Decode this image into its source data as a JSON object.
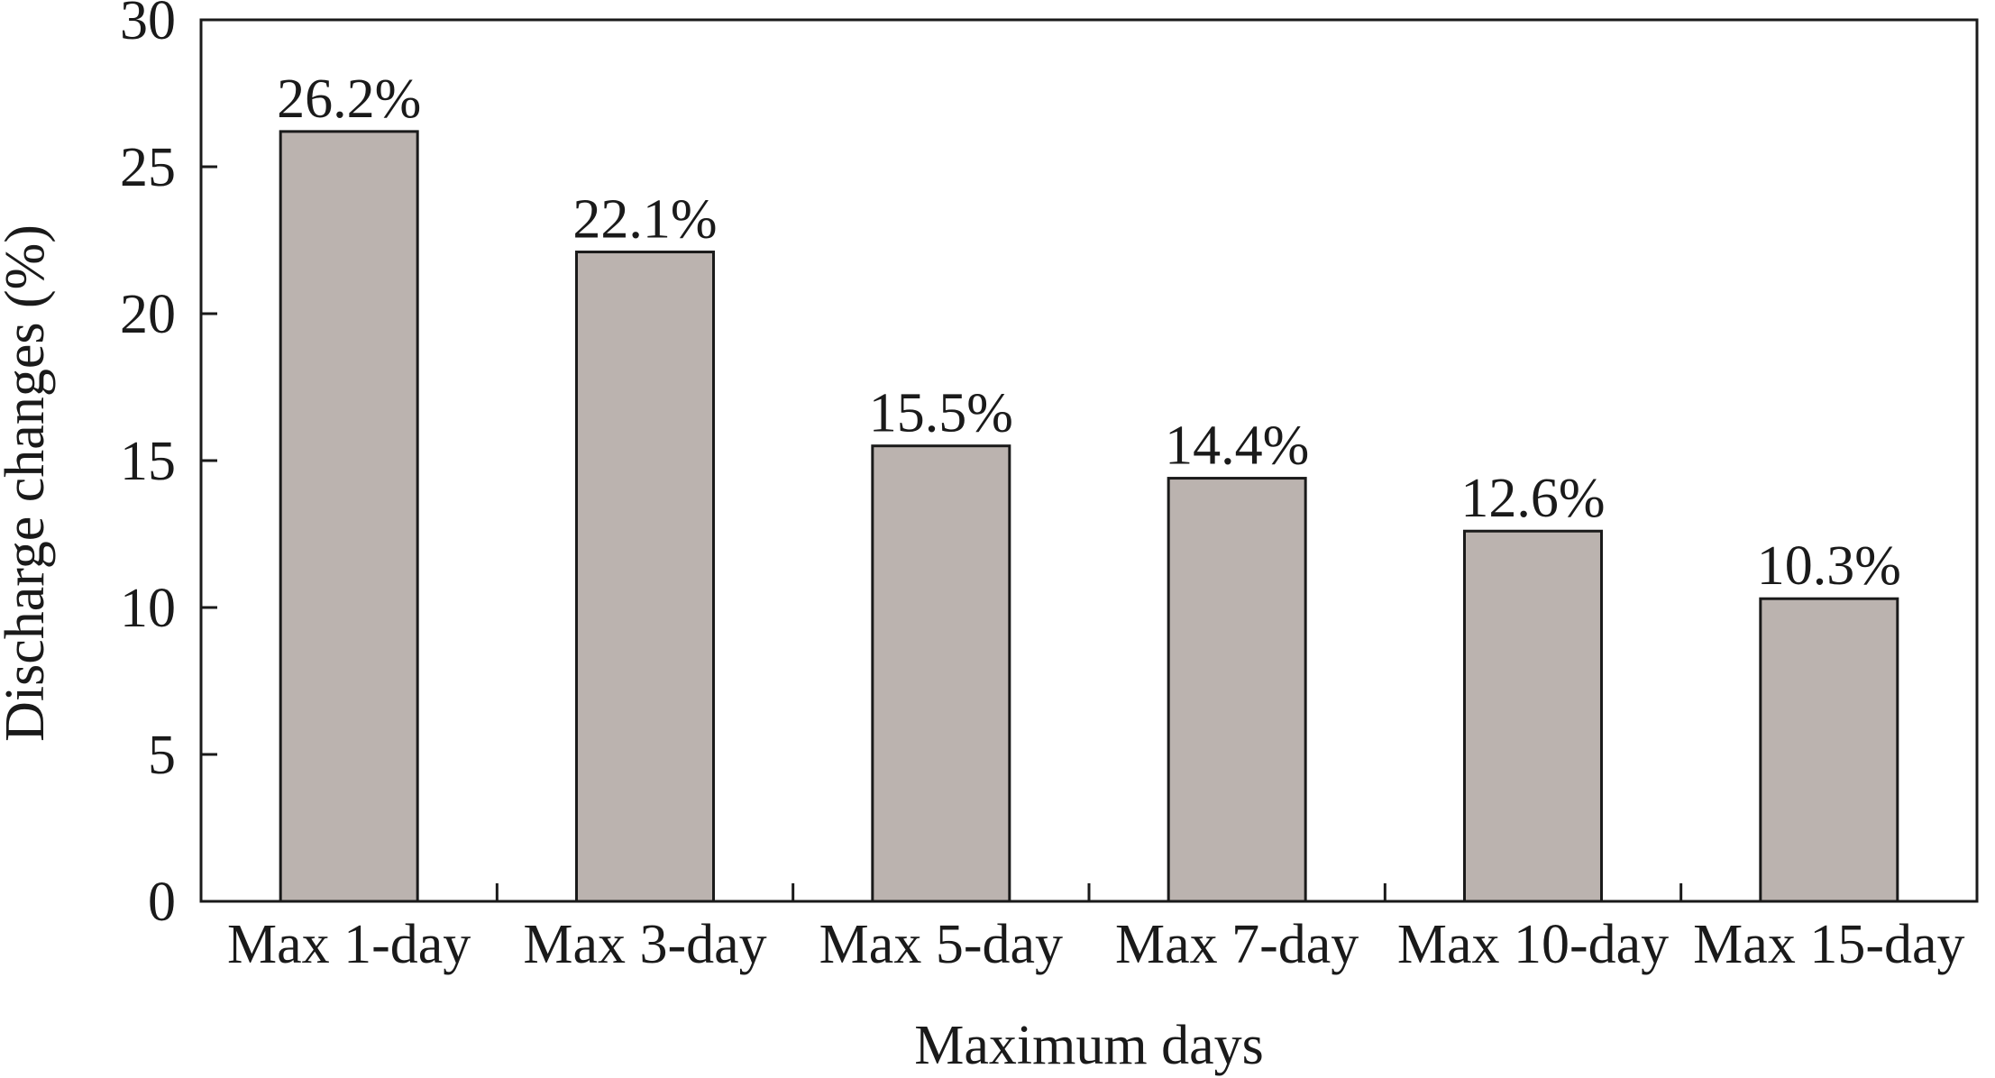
{
  "chart_data": {
    "type": "bar",
    "title": "",
    "xlabel": "Maximum days",
    "ylabel": "Discharge changes (%)",
    "categories": [
      "Max 1-day",
      "Max 3-day",
      "Max 5-day",
      "Max 7-day",
      "Max 10-day",
      "Max 15-day"
    ],
    "values": [
      26.2,
      22.1,
      15.5,
      14.4,
      12.6,
      10.3
    ],
    "data_labels": [
      "26.2%",
      "22.1%",
      "15.5%",
      "14.4%",
      "12.6%",
      "10.3%"
    ],
    "ylim": [
      0,
      30
    ],
    "yticks": [
      0,
      5,
      10,
      15,
      20,
      25,
      30
    ],
    "grid": false,
    "legend": "none",
    "bar_color": "#bbb3af",
    "edge_color": "#1a1a1a"
  }
}
